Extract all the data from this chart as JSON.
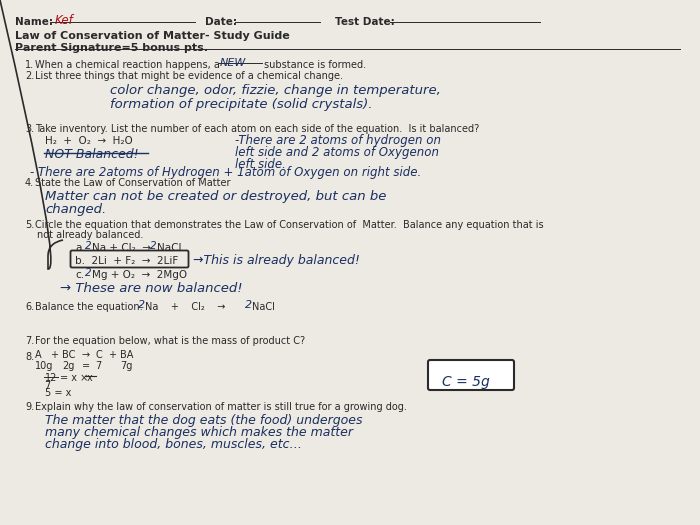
{
  "bg_color": "#ede9e3",
  "pc": "#2a2a2a",
  "hc": "#1a3060",
  "rc": "#aa1111",
  "name_written": "Kef",
  "q2_ans1": "color change, odor, fizzie, change in temperature,",
  "q2_ans2": "formation of precipitate (solid crystals).",
  "q3_rhs1": "-There are 2 atoms of hydrogen on",
  "q3_rhs2": "left side and 2 atoms of Oxygenon",
  "q3_rhs3": "left side.",
  "q3_rhs4": "- There are 2atoms of Hydrogen + 1atom of Oxygen on right side.",
  "q4_ans1": "Matter can not be created or destroyed, but can be",
  "q4_ans2": "changed.",
  "q5b_ans": "→This is already balanced!",
  "q5c_ans": "→ These are now balanced!",
  "q9_ans1": "The matter that the dog eats (the food) undergoes",
  "q9_ans2": "many chemical changes which makes the matter",
  "q9_ans3": "change into blood, bones, muscles, etc…"
}
